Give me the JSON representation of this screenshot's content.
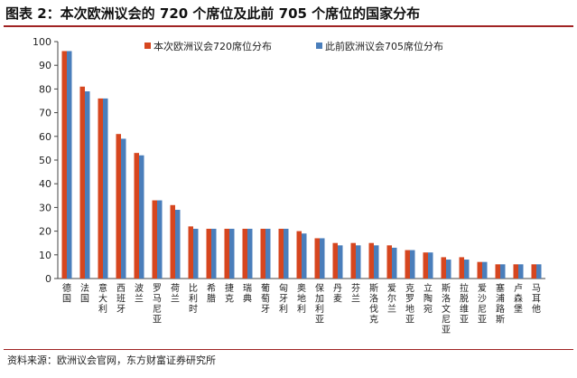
{
  "title": "图表 2：本次欧洲议会的 720 个席位及此前 705 个席位的国家分布",
  "source": "资料来源：欧洲议会官网，东方财富证券研究所",
  "colors": {
    "current": "#d6461f",
    "previous": "#4a7ebb",
    "accent_rule": "#a02323"
  },
  "chart_data": {
    "type": "bar",
    "title": "",
    "xlabel": "",
    "ylabel": "",
    "ylim": [
      0,
      100
    ],
    "yticks": [
      0,
      10,
      20,
      30,
      40,
      50,
      60,
      70,
      80,
      90,
      100
    ],
    "grid": false,
    "legend_position": "top-right",
    "categories": [
      "德国",
      "法国",
      "意大利",
      "西班牙",
      "波兰",
      "罗马尼亚",
      "荷兰",
      "比利时",
      "希腊",
      "捷克",
      "瑞典",
      "葡萄牙",
      "匈牙利",
      "奥地利",
      "保加利亚",
      "丹麦",
      "芬兰",
      "斯洛伐克",
      "爱尔兰",
      "克罗地亚",
      "立陶宛",
      "斯洛文尼亚",
      "拉脱维亚",
      "爱沙尼亚",
      "塞浦路斯",
      "卢森堡",
      "马耳他"
    ],
    "series": [
      {
        "name": "本次欧洲议会720席位分布",
        "color": "#d6461f",
        "values": [
          96,
          81,
          76,
          61,
          53,
          33,
          31,
          22,
          21,
          21,
          21,
          21,
          21,
          20,
          17,
          15,
          15,
          15,
          14,
          12,
          11,
          9,
          9,
          7,
          6,
          6,
          6
        ]
      },
      {
        "name": "此前欧洲议会705席位分布",
        "color": "#4a7ebb",
        "values": [
          96,
          79,
          76,
          59,
          52,
          33,
          29,
          21,
          21,
          21,
          21,
          21,
          21,
          19,
          17,
          14,
          14,
          14,
          13,
          12,
          11,
          8,
          8,
          7,
          6,
          6,
          6
        ]
      }
    ]
  }
}
